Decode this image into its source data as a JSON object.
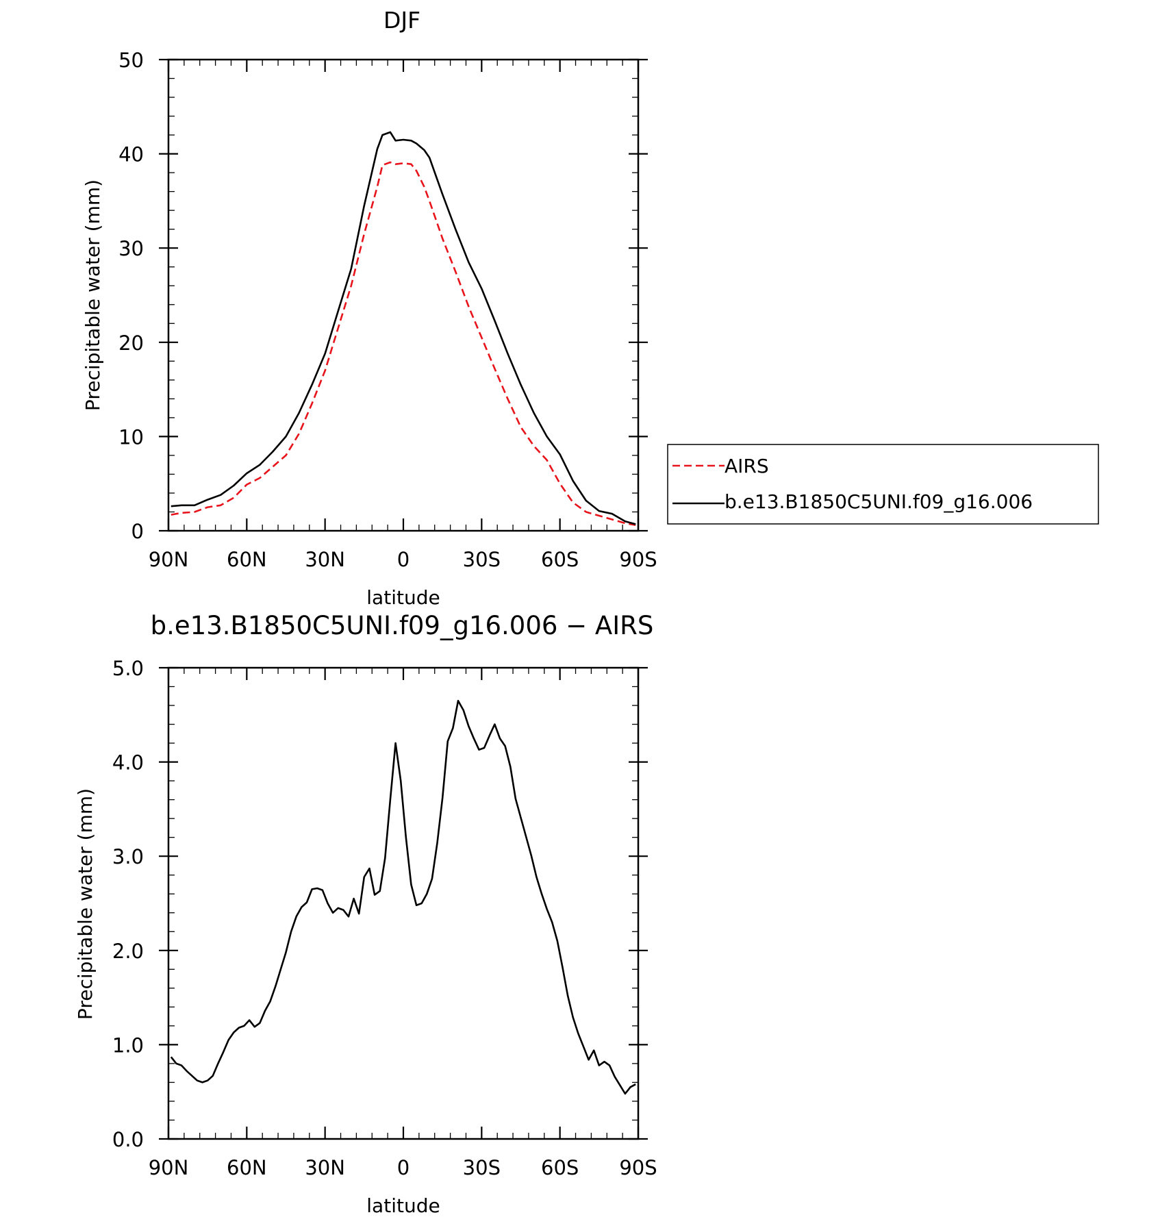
{
  "chart_data": [
    {
      "type": "line",
      "title": "DJF",
      "xlabel": "latitude",
      "ylabel": "Precipitable water (mm)",
      "xlim": [
        -90,
        90
      ],
      "ylim": [
        0,
        50
      ],
      "x_ticks": [
        {
          "value": -90,
          "label": "90N"
        },
        {
          "value": -60,
          "label": "60N"
        },
        {
          "value": -30,
          "label": "30N"
        },
        {
          "value": 0,
          "label": "0"
        },
        {
          "value": 30,
          "label": "30S"
        },
        {
          "value": 60,
          "label": "60S"
        },
        {
          "value": 90,
          "label": "90S"
        }
      ],
      "y_ticks": [
        {
          "value": 0,
          "label": "0"
        },
        {
          "value": 10,
          "label": "10"
        },
        {
          "value": 20,
          "label": "20"
        },
        {
          "value": 30,
          "label": "30"
        },
        {
          "value": 40,
          "label": "40"
        },
        {
          "value": 50,
          "label": "50"
        }
      ],
      "legend": {
        "placement": "right, outside plot"
      },
      "series": [
        {
          "name": "AIRS",
          "color": "#e8141b",
          "style": "dashed",
          "x": [
            -89,
            -85,
            -80,
            -75,
            -70,
            -65,
            -60,
            -55,
            -50,
            -45,
            -40,
            -35,
            -30,
            -25,
            -20,
            -15,
            -10,
            -8,
            -5,
            -3,
            0,
            3,
            5,
            8,
            10,
            15,
            20,
            25,
            30,
            35,
            40,
            45,
            50,
            55,
            60,
            65,
            70,
            75,
            80,
            85,
            89
          ],
          "values": [
            1.7,
            1.9,
            2.0,
            2.5,
            2.7,
            3.5,
            4.9,
            5.6,
            6.8,
            8.0,
            10.3,
            13.5,
            17.0,
            21.5,
            26.0,
            31.5,
            36.5,
            38.8,
            39.1,
            38.9,
            39.0,
            38.9,
            38.2,
            36.5,
            35.0,
            31.0,
            27.5,
            23.8,
            20.5,
            17.2,
            14.0,
            11.0,
            9.0,
            7.5,
            5.0,
            3.0,
            2.0,
            1.6,
            1.2,
            0.8,
            0.6
          ]
        },
        {
          "name": "b.e13.B1850C5UNI.f09_g16.006",
          "color": "#000000",
          "style": "solid",
          "x": [
            -89,
            -85,
            -80,
            -75,
            -70,
            -65,
            -60,
            -55,
            -50,
            -45,
            -40,
            -35,
            -30,
            -25,
            -20,
            -15,
            -10,
            -8,
            -5,
            -3,
            0,
            3,
            5,
            8,
            10,
            15,
            20,
            25,
            30,
            35,
            40,
            45,
            50,
            55,
            60,
            65,
            70,
            75,
            80,
            85,
            89
          ],
          "values": [
            2.6,
            2.7,
            2.7,
            3.3,
            3.8,
            4.8,
            6.1,
            7.0,
            8.4,
            10.0,
            12.5,
            15.5,
            18.8,
            23.3,
            27.8,
            34.5,
            40.5,
            42.0,
            42.3,
            41.4,
            41.5,
            41.4,
            41.1,
            40.4,
            39.6,
            35.7,
            32.0,
            28.5,
            25.7,
            22.3,
            18.8,
            15.5,
            12.5,
            10.0,
            8.1,
            5.3,
            3.2,
            2.1,
            1.8,
            1.0,
            0.7
          ]
        }
      ]
    },
    {
      "type": "line",
      "title": "b.e13.B1850C5UNI.f09_g16.006 − AIRS",
      "xlabel": "latitude",
      "ylabel": "Precipitable water (mm)",
      "xlim": [
        -90,
        90
      ],
      "ylim": [
        0,
        5
      ],
      "x_ticks": [
        {
          "value": -90,
          "label": "90N"
        },
        {
          "value": -60,
          "label": "60N"
        },
        {
          "value": -30,
          "label": "30N"
        },
        {
          "value": 0,
          "label": "0"
        },
        {
          "value": 30,
          "label": "30S"
        },
        {
          "value": 60,
          "label": "60S"
        },
        {
          "value": 90,
          "label": "90S"
        }
      ],
      "y_ticks": [
        {
          "value": 0,
          "label": "0.0"
        },
        {
          "value": 1,
          "label": "1.0"
        },
        {
          "value": 2,
          "label": "2.0"
        },
        {
          "value": 3,
          "label": "3.0"
        },
        {
          "value": 4,
          "label": "4.0"
        },
        {
          "value": 5,
          "label": "5.0"
        }
      ],
      "series": [
        {
          "color": "#000000",
          "style": "solid",
          "x": [
            -89,
            -87,
            -85,
            -83,
            -81,
            -79,
            -77,
            -75,
            -73,
            -71,
            -69,
            -67,
            -65,
            -63,
            -61,
            -59,
            -57,
            -55,
            -53,
            -51,
            -49,
            -47,
            -45,
            -43,
            -41,
            -39,
            -37,
            -35,
            -33,
            -31,
            -29,
            -27,
            -25,
            -23,
            -21,
            -19,
            -17,
            -15,
            -13,
            -11,
            -9,
            -7,
            -5,
            -3,
            -1,
            1,
            3,
            5,
            7,
            9,
            11,
            13,
            15,
            17,
            19,
            21,
            23,
            25,
            27,
            29,
            31,
            33,
            35,
            37,
            39,
            41,
            43,
            45,
            47,
            49,
            51,
            53,
            55,
            57,
            59,
            61,
            63,
            65,
            67,
            69,
            71,
            73,
            75,
            77,
            79,
            81,
            83,
            85,
            87,
            89
          ],
          "values": [
            0.87,
            0.8,
            0.78,
            0.72,
            0.67,
            0.62,
            0.6,
            0.62,
            0.67,
            0.8,
            0.92,
            1.05,
            1.13,
            1.18,
            1.2,
            1.26,
            1.19,
            1.23,
            1.36,
            1.46,
            1.62,
            1.8,
            1.98,
            2.2,
            2.36,
            2.46,
            2.51,
            2.65,
            2.66,
            2.64,
            2.5,
            2.4,
            2.45,
            2.43,
            2.36,
            2.55,
            2.39,
            2.78,
            2.87,
            2.59,
            2.63,
            2.98,
            3.6,
            4.2,
            3.8,
            3.2,
            2.7,
            2.48,
            2.5,
            2.6,
            2.76,
            3.14,
            3.62,
            4.22,
            4.36,
            4.65,
            4.55,
            4.38,
            4.25,
            4.13,
            4.15,
            4.28,
            4.4,
            4.25,
            4.17,
            3.95,
            3.61,
            3.41,
            3.21,
            3.01,
            2.78,
            2.6,
            2.44,
            2.3,
            2.1,
            1.82,
            1.52,
            1.29,
            1.12,
            0.98,
            0.84,
            0.94,
            0.78,
            0.82,
            0.78,
            0.66,
            0.57,
            0.48,
            0.55,
            0.58
          ]
        }
      ]
    }
  ]
}
